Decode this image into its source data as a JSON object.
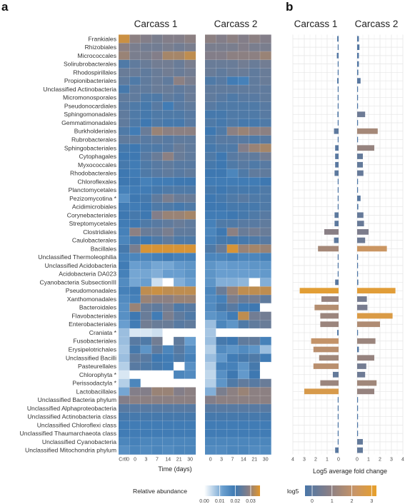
{
  "panels": {
    "a": "a",
    "b": "b"
  },
  "colors": {
    "low": "#ffffff",
    "mid": "#3c78b2",
    "mid2": "#8a7f85",
    "high": "#e3972a",
    "bar_pos": "#b38b6d",
    "bar_neg": "#4a76a8"
  },
  "chart_data": [
    {
      "type": "heatmap",
      "panel": "a",
      "facets": [
        "Carcass 1",
        "Carcass 2"
      ],
      "x_categories_carcass1": [
        "Crtl0",
        "0",
        "3",
        "7",
        "14",
        "21",
        "30"
      ],
      "x_categories_carcass2": [
        "0",
        "3",
        "7",
        "14",
        "21",
        "30"
      ],
      "xlabel": "Time (days)",
      "rows": [
        "Frankiales",
        "Rhizobiales",
        "Micrococcales",
        "Solirubrobacterales",
        "Rhodospirillales",
        "Propionibacteriales",
        "Unclassified Actinobacteria",
        "Micromonosporales",
        "Pseudonocardiales",
        "Sphingomonadales",
        "Gemmatimonadales",
        "Burkholderiales",
        "Rubrobacterales",
        "Sphingobacteriales",
        "Cytophagales",
        "Myxococcales",
        "Rhodobacterales",
        "Chloroflexales",
        "Planctomycetales",
        "Pezizomycotina *",
        "Acidimicrobiales",
        "Corynebacteriales",
        "Streptomycetales",
        "Clostridiales",
        "Caulobacterales",
        "Bacillales",
        "Unclassified Thermoleophilia",
        "Unclassified Acidobacteria",
        "Acidobacteria DA023",
        "Cyanobacteria SubsectionIII",
        "Pseudomonadales",
        "Xanthomonadales",
        "Bacteroidales",
        "Flavobacteriales",
        "Enterobacteriales",
        "Craniata *",
        "Fusobacteriales",
        "Erysipelotrichales",
        "Unclassified Bacilli",
        "Pasteurellales",
        "Chlorophyta *",
        "Perissodactyla *",
        "Lactobacillales",
        "Unclassified Bacteria phylum",
        "Unclassified Alphaproteobacteria",
        "Unclassified Actinobacteria class",
        "Unclassified Chloroflexi class",
        "Unclassified Thaumarchaeota class",
        "Unclassified Cyanobacteria",
        "Unclassified Mitochondria phylum"
      ],
      "legend_title": "Relative abundance",
      "legend_ticks": [
        "0.00",
        "0.01",
        "0.02",
        "0.03"
      ],
      "legend_range": [
        0,
        0.036
      ],
      "values_carcass1": [
        [
          0.034,
          0.029,
          0.028,
          0.027,
          0.028,
          0.028,
          0.029
        ],
        [
          0.029,
          0.027,
          0.026,
          0.026,
          0.027,
          0.026,
          0.027
        ],
        [
          0.03,
          0.027,
          0.027,
          0.028,
          0.031,
          0.031,
          0.033
        ],
        [
          0.022,
          0.024,
          0.025,
          0.026,
          0.026,
          0.025,
          0.027
        ],
        [
          0.025,
          0.025,
          0.024,
          0.025,
          0.026,
          0.025,
          0.026
        ],
        [
          0.024,
          0.022,
          0.024,
          0.025,
          0.024,
          0.029,
          0.027
        ],
        [
          0.021,
          0.024,
          0.024,
          0.025,
          0.025,
          0.024,
          0.025
        ],
        [
          0.024,
          0.024,
          0.022,
          0.022,
          0.024,
          0.023,
          0.025
        ],
        [
          0.023,
          0.022,
          0.021,
          0.023,
          0.019,
          0.023,
          0.024
        ],
        [
          0.024,
          0.022,
          0.021,
          0.022,
          0.022,
          0.022,
          0.023
        ],
        [
          0.024,
          0.022,
          0.02,
          0.022,
          0.021,
          0.021,
          0.023
        ],
        [
          0.022,
          0.019,
          0.025,
          0.03,
          0.029,
          0.029,
          0.029
        ],
        [
          0.024,
          0.024,
          0.023,
          0.024,
          0.023,
          0.024,
          0.024
        ],
        [
          0.021,
          0.02,
          0.022,
          0.022,
          0.023,
          0.025,
          0.024
        ],
        [
          0.02,
          0.02,
          0.023,
          0.025,
          0.029,
          0.025,
          0.024
        ],
        [
          0.021,
          0.019,
          0.022,
          0.023,
          0.024,
          0.023,
          0.023
        ],
        [
          0.02,
          0.019,
          0.022,
          0.023,
          0.024,
          0.023,
          0.024
        ],
        [
          0.02,
          0.02,
          0.018,
          0.019,
          0.019,
          0.02,
          0.02
        ],
        [
          0.018,
          0.019,
          0.019,
          0.021,
          0.022,
          0.022,
          0.022
        ],
        [
          0.015,
          0.02,
          0.021,
          0.024,
          0.027,
          0.025,
          0.025
        ],
        [
          0.019,
          0.019,
          0.02,
          0.022,
          0.022,
          0.021,
          0.022
        ],
        [
          0.02,
          0.021,
          0.02,
          0.028,
          0.03,
          0.03,
          0.031
        ],
        [
          0.019,
          0.02,
          0.022,
          0.023,
          0.024,
          0.025,
          0.024
        ],
        [
          0.018,
          0.029,
          0.025,
          0.025,
          0.027,
          0.024,
          0.024
        ],
        [
          0.017,
          0.021,
          0.02,
          0.022,
          0.024,
          0.022,
          0.022
        ],
        [
          0.021,
          0.027,
          0.035,
          0.035,
          0.035,
          0.035,
          0.035
        ],
        [
          0.018,
          0.017,
          0.017,
          0.018,
          0.019,
          0.018,
          0.018
        ],
        [
          0.019,
          0.012,
          0.013,
          0.011,
          0.011,
          0.013,
          0.014
        ],
        [
          0.018,
          0.011,
          0.011,
          0.01,
          0.012,
          0.012,
          0.014
        ],
        [
          0.016,
          0.011,
          0.012,
          0.004,
          0.0,
          0.01,
          0.012
        ],
        [
          0.018,
          0.019,
          0.033,
          0.034,
          0.033,
          0.033,
          0.033
        ],
        [
          0.016,
          0.018,
          0.03,
          0.029,
          0.029,
          0.03,
          0.03
        ],
        [
          0.015,
          0.03,
          0.025,
          0.024,
          0.026,
          0.022,
          0.023
        ],
        [
          0.015,
          0.02,
          0.025,
          0.019,
          0.027,
          0.024,
          0.022
        ],
        [
          0.012,
          0.019,
          0.026,
          0.025,
          0.025,
          0.023,
          0.024
        ],
        [
          0.008,
          0.003,
          0.003,
          0.004,
          0.0,
          0.0,
          0.0
        ],
        [
          0.008,
          0.023,
          0.022,
          0.026,
          0.0,
          0.024,
          0.012
        ],
        [
          0.007,
          0.021,
          0.014,
          0.024,
          0.017,
          0.023,
          0.016
        ],
        [
          0.008,
          0.024,
          0.023,
          0.02,
          0.019,
          0.022,
          0.018
        ],
        [
          0.006,
          0.023,
          0.022,
          0.021,
          0.019,
          0.0,
          0.015
        ],
        [
          0.003,
          0.0,
          0.0,
          0.0,
          0.0,
          0.017,
          0.016
        ],
        [
          0.006,
          0.017,
          0.0,
          0.0,
          0.0,
          0.0,
          0.0
        ],
        [
          0.011,
          0.028,
          0.028,
          0.03,
          0.03,
          0.028,
          0.029
        ],
        [
          0.028,
          0.029,
          0.029,
          0.029,
          0.029,
          0.029,
          0.029
        ],
        [
          0.023,
          0.023,
          0.023,
          0.023,
          0.023,
          0.023,
          0.023
        ],
        [
          0.021,
          0.021,
          0.021,
          0.021,
          0.021,
          0.021,
          0.021
        ],
        [
          0.019,
          0.019,
          0.019,
          0.019,
          0.019,
          0.019,
          0.019
        ],
        [
          0.019,
          0.019,
          0.019,
          0.019,
          0.019,
          0.019,
          0.019
        ],
        [
          0.017,
          0.018,
          0.017,
          0.017,
          0.017,
          0.017,
          0.017
        ],
        [
          0.015,
          0.017,
          0.016,
          0.017,
          0.016,
          0.017,
          0.017
        ]
      ],
      "values_carcass2": [
        [
          0.029,
          0.028,
          0.029,
          0.028,
          0.029,
          0.028
        ],
        [
          0.027,
          0.027,
          0.027,
          0.028,
          0.027,
          0.027
        ],
        [
          0.028,
          0.028,
          0.029,
          0.029,
          0.029,
          0.03
        ],
        [
          0.025,
          0.025,
          0.025,
          0.026,
          0.025,
          0.026
        ],
        [
          0.025,
          0.024,
          0.025,
          0.025,
          0.024,
          0.025
        ],
        [
          0.022,
          0.023,
          0.019,
          0.018,
          0.024,
          0.025
        ],
        [
          0.024,
          0.024,
          0.024,
          0.024,
          0.024,
          0.024
        ],
        [
          0.024,
          0.023,
          0.022,
          0.023,
          0.023,
          0.024
        ],
        [
          0.023,
          0.022,
          0.022,
          0.022,
          0.022,
          0.023
        ],
        [
          0.021,
          0.021,
          0.022,
          0.022,
          0.022,
          0.023
        ],
        [
          0.022,
          0.021,
          0.022,
          0.021,
          0.021,
          0.022
        ],
        [
          0.02,
          0.022,
          0.029,
          0.03,
          0.029,
          0.029
        ],
        [
          0.022,
          0.023,
          0.023,
          0.023,
          0.022,
          0.023
        ],
        [
          0.021,
          0.022,
          0.022,
          0.028,
          0.03,
          0.031
        ],
        [
          0.022,
          0.02,
          0.023,
          0.024,
          0.024,
          0.026
        ],
        [
          0.021,
          0.02,
          0.022,
          0.023,
          0.022,
          0.023
        ],
        [
          0.02,
          0.02,
          0.017,
          0.022,
          0.024,
          0.024
        ],
        [
          0.019,
          0.019,
          0.019,
          0.019,
          0.019,
          0.02
        ],
        [
          0.021,
          0.02,
          0.021,
          0.021,
          0.021,
          0.022
        ],
        [
          0.02,
          0.021,
          0.022,
          0.023,
          0.022,
          0.022
        ],
        [
          0.02,
          0.02,
          0.021,
          0.021,
          0.021,
          0.022
        ],
        [
          0.019,
          0.019,
          0.02,
          0.021,
          0.022,
          0.023
        ],
        [
          0.018,
          0.022,
          0.022,
          0.023,
          0.023,
          0.024
        ],
        [
          0.017,
          0.02,
          0.029,
          0.025,
          0.026,
          0.025
        ],
        [
          0.018,
          0.021,
          0.021,
          0.021,
          0.022,
          0.023
        ],
        [
          0.022,
          0.025,
          0.035,
          0.03,
          0.031,
          0.03
        ],
        [
          0.017,
          0.017,
          0.018,
          0.017,
          0.017,
          0.018
        ],
        [
          0.014,
          0.012,
          0.013,
          0.013,
          0.014,
          0.014
        ],
        [
          0.014,
          0.012,
          0.012,
          0.012,
          0.012,
          0.013
        ],
        [
          0.014,
          0.01,
          0.01,
          0.009,
          0.0,
          0.01
        ],
        [
          0.017,
          0.025,
          0.03,
          0.033,
          0.033,
          0.033
        ],
        [
          0.016,
          0.018,
          0.027,
          0.025,
          0.026,
          0.024
        ],
        [
          0.016,
          0.021,
          0.023,
          0.019,
          0.02,
          0.0
        ],
        [
          0.014,
          0.016,
          0.019,
          0.033,
          0.026,
          0.026
        ],
        [
          0.008,
          0.017,
          0.014,
          0.022,
          0.024,
          0.025
        ],
        [
          0.007,
          0.0,
          0.0,
          0.0,
          0.0,
          0.0
        ],
        [
          0.008,
          0.021,
          0.02,
          0.024,
          0.024,
          0.018
        ],
        [
          0.006,
          0.016,
          0.014,
          0.016,
          0.014,
          0.008
        ],
        [
          0.008,
          0.013,
          0.019,
          0.021,
          0.022,
          0.019
        ],
        [
          0.006,
          0.018,
          0.018,
          0.014,
          0.021,
          0.0
        ],
        [
          0.005,
          0.015,
          0.02,
          0.013,
          0.02,
          0.0
        ],
        [
          0.006,
          0.014,
          0.022,
          0.024,
          0.023,
          0.025
        ],
        [
          0.01,
          0.027,
          0.029,
          0.03,
          0.029,
          0.029
        ],
        [
          0.028,
          0.029,
          0.029,
          0.029,
          0.029,
          0.029
        ],
        [
          0.023,
          0.023,
          0.023,
          0.023,
          0.023,
          0.023
        ],
        [
          0.021,
          0.021,
          0.021,
          0.021,
          0.021,
          0.021
        ],
        [
          0.019,
          0.019,
          0.019,
          0.019,
          0.019,
          0.019
        ],
        [
          0.019,
          0.019,
          0.019,
          0.019,
          0.019,
          0.019
        ],
        [
          0.017,
          0.017,
          0.017,
          0.017,
          0.017,
          0.017
        ],
        [
          0.016,
          0.016,
          0.017,
          0.017,
          0.016,
          0.016
        ]
      ]
    },
    {
      "type": "bar",
      "panel": "b",
      "orientation": "horizontal",
      "facets": [
        "Carcass 1",
        "Carcass 2"
      ],
      "xlabel": "Log5 average fold change",
      "carcass1_ticks": [
        "4",
        "3",
        "2",
        "1",
        "0"
      ],
      "carcass2_ticks": [
        "0",
        "1",
        "2",
        "3",
        "4"
      ],
      "xlim": [
        0,
        4
      ],
      "legend_title": "log5",
      "legend_ticks": [
        "0",
        "1",
        "2",
        "3"
      ],
      "values_carcass1": [
        0.12,
        0.03,
        0.15,
        0.03,
        0.03,
        0.12,
        0.02,
        0.02,
        0.05,
        0.1,
        0.05,
        0.4,
        0.05,
        0.3,
        0.3,
        0.3,
        0.35,
        0.05,
        0.05,
        0.05,
        0.05,
        0.35,
        0.35,
        1.25,
        0.4,
        1.8,
        0.03,
        0.05,
        0.05,
        0.3,
        3.4,
        1.5,
        2.1,
        1.6,
        1.6,
        0.12,
        2.4,
        2.2,
        1.7,
        2.2,
        0.5,
        1.6,
        3.0,
        0.03,
        0.03,
        0.03,
        0.03,
        0.03,
        0.03,
        0.3
      ],
      "values_carcass2": [
        0.15,
        0.2,
        0.15,
        0.15,
        0.1,
        0.3,
        0.03,
        0.03,
        0.03,
        0.7,
        0.03,
        1.8,
        0.03,
        1.5,
        0.5,
        0.5,
        0.55,
        0.03,
        0.03,
        0.3,
        0.1,
        0.55,
        0.6,
        1.0,
        0.7,
        2.6,
        0.03,
        0.05,
        0.05,
        0.1,
        3.35,
        0.85,
        0.9,
        3.1,
        2.0,
        0.03,
        1.6,
        0.15,
        1.5,
        0.8,
        0.7,
        1.7,
        1.5,
        0.03,
        0.03,
        0.03,
        0.03,
        0.03,
        0.5,
        0.5
      ]
    }
  ]
}
